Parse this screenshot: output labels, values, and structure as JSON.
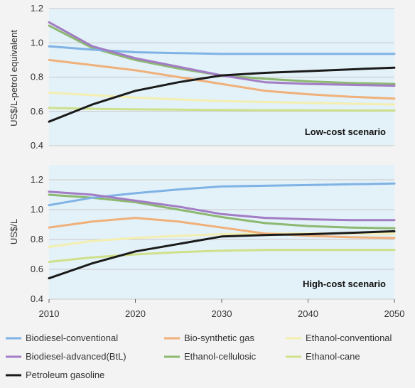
{
  "chart_data": [
    {
      "type": "line",
      "annotation": "Low-cost scenario",
      "ylabel": "US$/L-petrol equivalent",
      "xlabel": "",
      "ylim": [
        0.4,
        1.2
      ],
      "yticks": [
        "0.4",
        "0.6",
        "0.8",
        "1.0",
        "1.2"
      ],
      "x": [
        2010,
        2015,
        2020,
        2025,
        2030,
        2035,
        2040,
        2045,
        2050
      ],
      "series": [
        {
          "name": "Biodiesel-conventional",
          "color": "#7fb2e5",
          "values": [
            0.98,
            0.96,
            0.945,
            0.94,
            0.935,
            0.935,
            0.935,
            0.935,
            0.935
          ]
        },
        {
          "name": "Biodiesel-advanced(BtL)",
          "color": "#a27cc4",
          "values": [
            1.12,
            0.98,
            0.91,
            0.86,
            0.81,
            0.77,
            0.76,
            0.755,
            0.75
          ]
        },
        {
          "name": "Petroleum gasoline",
          "color": "#1a1a1a",
          "values": [
            0.54,
            0.64,
            0.72,
            0.77,
            0.81,
            0.825,
            0.835,
            0.845,
            0.855
          ]
        },
        {
          "name": "Bio-synthetic gas",
          "color": "#f0b07a",
          "values": [
            0.9,
            0.87,
            0.84,
            0.8,
            0.76,
            0.72,
            0.7,
            0.685,
            0.675
          ]
        },
        {
          "name": "Ethanol-cellulosic",
          "color": "#8cb870",
          "values": [
            1.1,
            0.97,
            0.9,
            0.85,
            0.81,
            0.79,
            0.775,
            0.765,
            0.76
          ]
        },
        {
          "name": "Ethanol-conventional",
          "color": "#f4eeb0",
          "values": [
            0.71,
            0.695,
            0.68,
            0.67,
            0.66,
            0.655,
            0.65,
            0.645,
            0.64
          ]
        },
        {
          "name": "Ethanol-cane",
          "color": "#cfe08a",
          "values": [
            0.62,
            0.615,
            0.612,
            0.61,
            0.608,
            0.607,
            0.606,
            0.605,
            0.605
          ]
        }
      ]
    },
    {
      "type": "line",
      "annotation": "High-cost scenario",
      "ylabel": "US$/L",
      "xlabel": "",
      "ylim": [
        0.4,
        1.3
      ],
      "yticks": [
        "0.4",
        "0.6",
        "0.8",
        "1.0",
        "1.2"
      ],
      "x": [
        2010,
        2015,
        2020,
        2025,
        2030,
        2035,
        2040,
        2045,
        2050
      ],
      "xticks": [
        "2010",
        "2020",
        "2030",
        "2040",
        "2050"
      ],
      "series": [
        {
          "name": "Biodiesel-conventional",
          "color": "#7fb2e5",
          "values": [
            1.03,
            1.08,
            1.11,
            1.135,
            1.155,
            1.16,
            1.165,
            1.17,
            1.175
          ]
        },
        {
          "name": "Biodiesel-advanced(BtL)",
          "color": "#a27cc4",
          "values": [
            1.12,
            1.1,
            1.06,
            1.02,
            0.97,
            0.945,
            0.935,
            0.93,
            0.93
          ]
        },
        {
          "name": "Petroleum gasoline",
          "color": "#1a1a1a",
          "values": [
            0.54,
            0.64,
            0.72,
            0.77,
            0.82,
            0.83,
            0.835,
            0.845,
            0.855
          ]
        },
        {
          "name": "Bio-synthetic gas",
          "color": "#f0b07a",
          "values": [
            0.88,
            0.92,
            0.945,
            0.92,
            0.88,
            0.84,
            0.825,
            0.815,
            0.81
          ]
        },
        {
          "name": "Ethanol-cellulosic",
          "color": "#8cb870",
          "values": [
            1.1,
            1.08,
            1.05,
            1.0,
            0.95,
            0.91,
            0.89,
            0.88,
            0.875
          ]
        },
        {
          "name": "Ethanol-conventional",
          "color": "#f4eeb0",
          "values": [
            0.75,
            0.79,
            0.81,
            0.825,
            0.835,
            0.84,
            0.84,
            0.84,
            0.84
          ]
        },
        {
          "name": "Ethanol-cane",
          "color": "#cfe08a",
          "values": [
            0.65,
            0.68,
            0.7,
            0.715,
            0.725,
            0.73,
            0.73,
            0.73,
            0.73
          ]
        }
      ]
    }
  ],
  "legend": [
    {
      "label": "Biodiesel-conventional",
      "color": "#7fb2e5"
    },
    {
      "label": "Bio-synthetic gas",
      "color": "#f0b07a"
    },
    {
      "label": "Ethanol-conventional",
      "color": "#f4eeb0"
    },
    {
      "label": "Biodiesel-advanced(BtL)",
      "color": "#a27cc4"
    },
    {
      "label": "Ethanol-cellulosic",
      "color": "#8cb870"
    },
    {
      "label": "Ethanol-cane",
      "color": "#cfe08a"
    },
    {
      "label": "Petroleum gasoline",
      "color": "#1a1a1a"
    }
  ]
}
